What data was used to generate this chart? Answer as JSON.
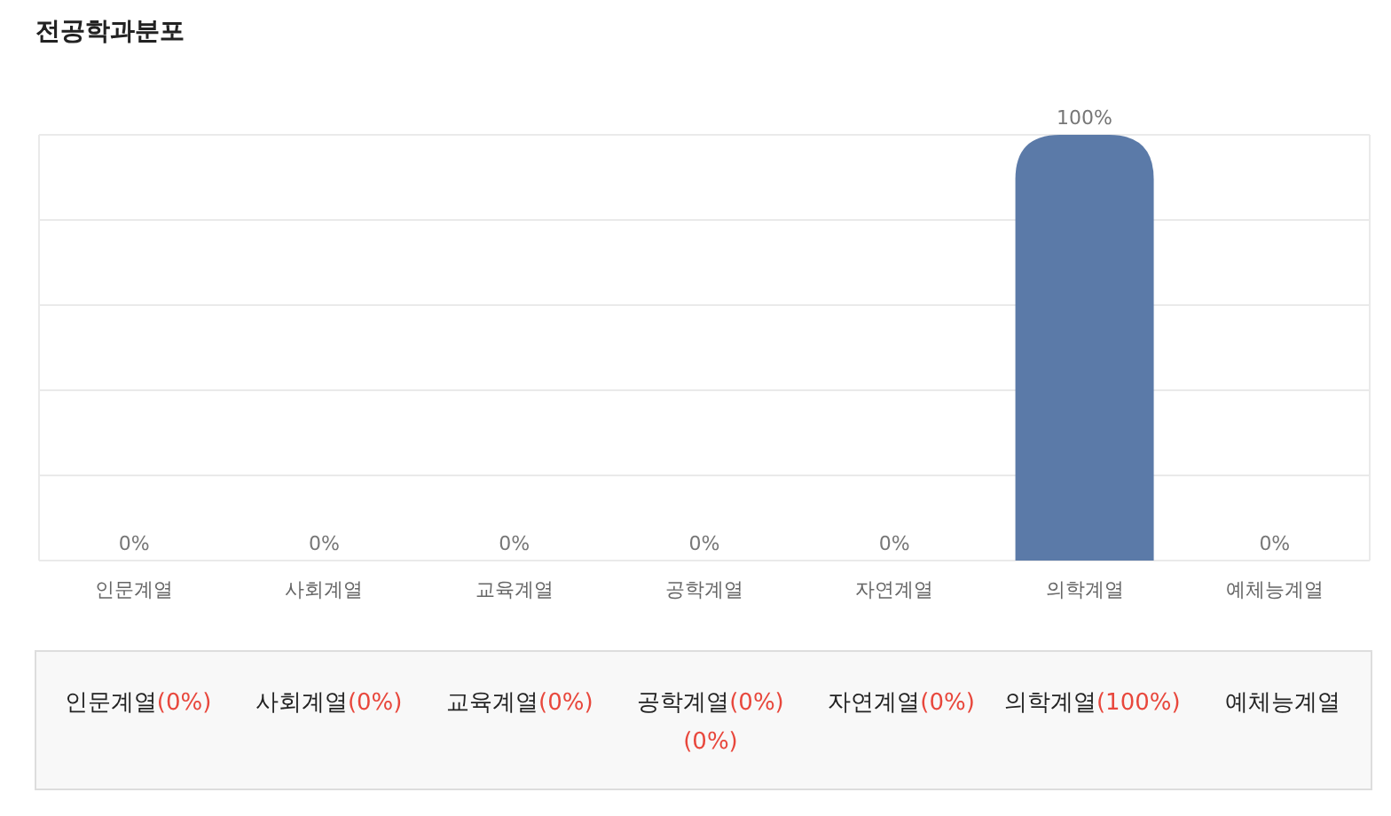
{
  "chart_data": {
    "type": "bar",
    "title": "전공학과분포",
    "categories": [
      "인문계열",
      "사회계열",
      "교육계열",
      "공학계열",
      "자연계열",
      "의학계열",
      "예체능계열"
    ],
    "values": [
      0,
      0,
      0,
      0,
      0,
      100,
      0
    ],
    "value_labels": [
      "0%",
      "0%",
      "0%",
      "0%",
      "0%",
      "100%",
      "0%"
    ],
    "color": "#5b7aa8",
    "ylim": [
      0,
      100
    ],
    "yticks": [
      {
        "value": 0,
        "label": null
      },
      {
        "value": 20,
        "label": null
      },
      {
        "value": 40,
        "label": null
      },
      {
        "value": 60,
        "label": null
      },
      {
        "value": 80,
        "label": null
      },
      {
        "value": 100,
        "label": null
      }
    ],
    "tick_labels": "x",
    "grid": "y",
    "annotations": [
      "인문계열(0%)",
      "사회계열(0%)",
      "교육계열(0%)",
      "공학계열(0%)(0%)",
      "자연계열(0%)",
      "의학계열(100%)",
      "예체능계열"
    ]
  }
}
